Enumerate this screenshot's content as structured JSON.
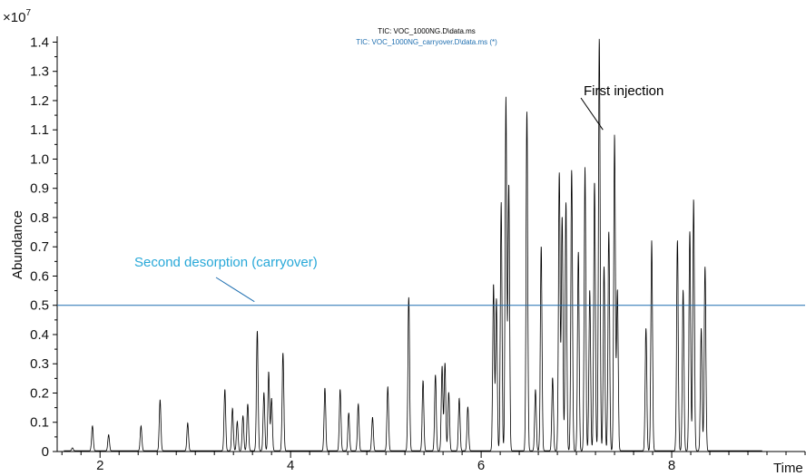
{
  "chart_data": {
    "type": "line",
    "xlabel": "Time",
    "ylabel": "Abundance",
    "y_multiplier": "×10",
    "y_multiplier_exp": "7",
    "xlim": [
      1.55,
      9.4
    ],
    "ylim": [
      0,
      1.42
    ],
    "x_ticks": [
      2,
      4,
      6,
      8
    ],
    "x_tick_labels": [
      "2",
      "4",
      "6",
      "8"
    ],
    "y_ticks": [
      0,
      0.1,
      0.2,
      0.3,
      0.4,
      0.5,
      0.6,
      0.7,
      0.8,
      0.9,
      1.0,
      1.1,
      1.2,
      1.3,
      1.4
    ],
    "y_tick_labels": [
      "0",
      "0.1",
      "0.2",
      "0.3",
      "0.4",
      "0.5",
      "0.6",
      "0.7",
      "0.8",
      "0.9",
      "1.0",
      "1.1",
      "1.2",
      "1.3",
      "1.4"
    ],
    "grid": false,
    "legend_position": "top-center",
    "series": [
      {
        "name": "TIC: VOC_1000NG.D\\data.ms",
        "color": "#000000",
        "peaks": [
          [
            1.71,
            0.01
          ],
          [
            1.92,
            0.085
          ],
          [
            2.09,
            0.055
          ],
          [
            2.43,
            0.085
          ],
          [
            2.63,
            0.175
          ],
          [
            2.92,
            0.095
          ],
          [
            3.31,
            0.21
          ],
          [
            3.39,
            0.145
          ],
          [
            3.44,
            0.1
          ],
          [
            3.5,
            0.12
          ],
          [
            3.55,
            0.16
          ],
          [
            3.65,
            0.41
          ],
          [
            3.72,
            0.2
          ],
          [
            3.77,
            0.27
          ],
          [
            3.8,
            0.18
          ],
          [
            3.92,
            0.335
          ],
          [
            4.36,
            0.215
          ],
          [
            4.52,
            0.21
          ],
          [
            4.61,
            0.13
          ],
          [
            4.71,
            0.16
          ],
          [
            4.86,
            0.115
          ],
          [
            5.02,
            0.22
          ],
          [
            5.24,
            0.525
          ],
          [
            5.39,
            0.24
          ],
          [
            5.52,
            0.26
          ],
          [
            5.59,
            0.29
          ],
          [
            5.62,
            0.3
          ],
          [
            5.66,
            0.2
          ],
          [
            5.77,
            0.18
          ],
          [
            5.86,
            0.15
          ],
          [
            6.13,
            0.57
          ],
          [
            6.16,
            0.52
          ],
          [
            6.21,
            0.85
          ],
          [
            6.26,
            1.21
          ],
          [
            6.29,
            0.91
          ],
          [
            6.48,
            1.16
          ],
          [
            6.57,
            0.21
          ],
          [
            6.63,
            0.7
          ],
          [
            6.75,
            0.25
          ],
          [
            6.82,
            0.95
          ],
          [
            6.85,
            0.8
          ],
          [
            6.89,
            0.85
          ],
          [
            6.95,
            0.96
          ],
          [
            7.02,
            0.68
          ],
          [
            7.09,
            0.97
          ],
          [
            7.14,
            0.55
          ],
          [
            7.19,
            0.92
          ],
          [
            7.24,
            1.41
          ],
          [
            7.29,
            0.63
          ],
          [
            7.34,
            0.75
          ],
          [
            7.4,
            1.08
          ],
          [
            7.43,
            0.55
          ],
          [
            7.73,
            0.42
          ],
          [
            7.79,
            0.72
          ],
          [
            8.06,
            0.72
          ],
          [
            8.12,
            0.55
          ],
          [
            8.19,
            0.75
          ],
          [
            8.23,
            0.86
          ],
          [
            8.31,
            0.42
          ],
          [
            8.35,
            0.63
          ]
        ]
      },
      {
        "name": "TIC: VOC_1000NG_carryover.D\\data.ms (*)",
        "color": "#1f6fb0",
        "values": [
          [
            1.55,
            0.5
          ],
          [
            9.4,
            0.5
          ]
        ]
      }
    ],
    "annotations": [
      {
        "text": "First injection",
        "color": "#000000",
        "points_to": [
          7.24,
          1.1
        ]
      },
      {
        "text": "Second desorption (carryover)",
        "color": "#28a8d8",
        "points_to": [
          3.62,
          0.5
        ]
      }
    ]
  }
}
